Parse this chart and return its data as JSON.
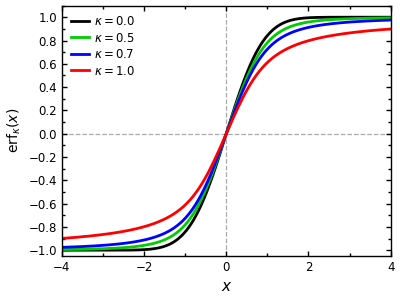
{
  "title": "",
  "xlabel": "$x$",
  "ylabel": "$\\mathrm{erf}_\\kappa(x)$",
  "xlim": [
    -4,
    4
  ],
  "ylim": [
    -1.05,
    1.1
  ],
  "xticks": [
    -4,
    -2,
    0,
    2,
    4
  ],
  "yticks": [
    -1.0,
    -0.8,
    -0.6,
    -0.4,
    -0.2,
    0.0,
    0.2,
    0.4,
    0.6,
    0.8,
    1.0
  ],
  "kappas": [
    0.0,
    0.5,
    0.7,
    1.0
  ],
  "colors": [
    "black",
    "#00cc00",
    "blue",
    "red"
  ],
  "labels": [
    "$\\kappa = 0.0$",
    "$\\kappa = 0.5$",
    "$\\kappa = 0.7$",
    "$\\kappa = 1.0$"
  ],
  "linewidth": 2.0,
  "grid_color": "#aaaaaa",
  "figsize": [
    4.0,
    3.0
  ],
  "dpi": 100
}
